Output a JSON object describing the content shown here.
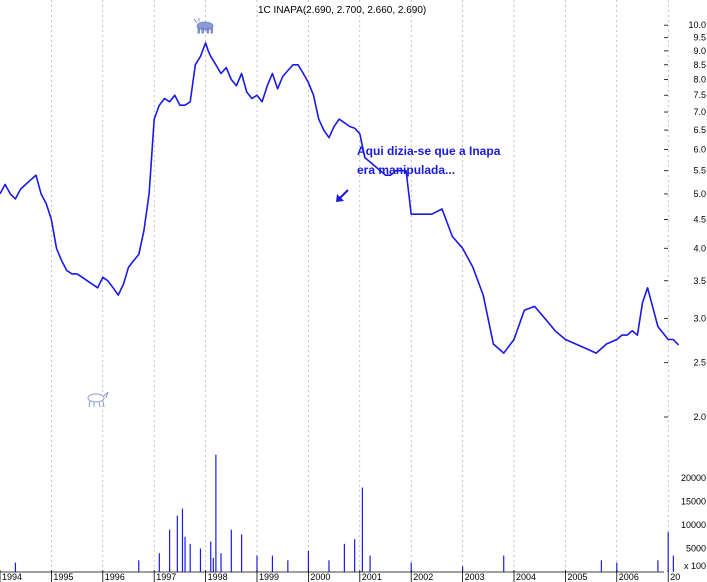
{
  "chart_data": {
    "type": "line",
    "title": "1C INAPA(2.690, 2.700, 2.660, 2.690)",
    "annotation_lines": [
      "Aqui dizia-se que a Inapa",
      "era manipulada..."
    ],
    "x_tick_labels": [
      "1994",
      "1995",
      "1996",
      "1997",
      "1998",
      "1999",
      "2000",
      "2001",
      "2002",
      "2003",
      "2004",
      "2005",
      "2006",
      "20"
    ],
    "y_tick_labels": [
      "10.0",
      "9.5",
      "9.0",
      "8.5",
      "8.0",
      "7.5",
      "7.0",
      "6.5",
      "6.0",
      "5.5",
      "5.0",
      "4.5",
      "4.0",
      "3.5",
      "3.0",
      "2.5",
      "2.0"
    ],
    "price_scale": "log",
    "y_range": [
      1.85,
      10.3
    ],
    "volume_tick_labels": [
      "20000",
      "15000",
      "10000",
      "5000"
    ],
    "volume_unit_label": "x 100",
    "volume_range": [
      0,
      26000
    ],
    "series": [
      {
        "x": [
          1994.0,
          1994.1,
          1994.2,
          1994.3,
          1994.4,
          1994.5,
          1994.6,
          1994.7,
          1994.8,
          1994.9,
          1995.0,
          1995.1,
          1995.2,
          1995.3,
          1995.4,
          1995.5,
          1995.6,
          1995.7,
          1995.8,
          1995.9,
          1996.0,
          1996.1,
          1996.2,
          1996.3,
          1996.4,
          1996.5,
          1996.6,
          1996.7,
          1996.8,
          1996.9,
          1997.0,
          1997.05,
          1997.1,
          1997.2,
          1997.3,
          1997.4,
          1997.5,
          1997.6,
          1997.7,
          1997.8,
          1997.9,
          1998.0,
          1998.05,
          1998.1,
          1998.2,
          1998.3,
          1998.4,
          1998.5,
          1998.6,
          1998.7,
          1998.8,
          1998.9,
          1999.0,
          1999.1,
          1999.2,
          1999.3,
          1999.4,
          1999.5,
          1999.6,
          1999.7,
          1999.8,
          1999.9,
          2000.0,
          2000.1,
          2000.2,
          2000.3,
          2000.4,
          2000.5,
          2000.6,
          2000.7,
          2000.8,
          2000.9,
          2001.0,
          2001.1,
          2001.2,
          2001.3,
          2001.4,
          2001.5,
          2001.6,
          2001.7,
          2001.8,
          2001.9,
          2002.0,
          2002.2,
          2002.4,
          2002.6,
          2002.8,
          2003.0,
          2003.2,
          2003.4,
          2003.6,
          2003.8,
          2004.0,
          2004.2,
          2004.4,
          2004.6,
          2004.8,
          2005.0,
          2005.2,
          2005.4,
          2005.6,
          2005.8,
          2006.0,
          2006.1,
          2006.2,
          2006.3,
          2006.4,
          2006.5,
          2006.6,
          2006.8,
          2007.0,
          2007.1,
          2007.2
        ],
        "y": [
          5.0,
          5.2,
          5.0,
          4.9,
          5.1,
          5.2,
          5.3,
          5.4,
          5.0,
          4.8,
          4.5,
          4.0,
          3.8,
          3.65,
          3.6,
          3.6,
          3.55,
          3.5,
          3.45,
          3.4,
          3.55,
          3.5,
          3.4,
          3.3,
          3.45,
          3.7,
          3.8,
          3.9,
          4.3,
          5.0,
          6.8,
          7.0,
          7.2,
          7.4,
          7.3,
          7.5,
          7.2,
          7.2,
          7.3,
          8.5,
          8.8,
          9.3,
          9.0,
          8.8,
          8.5,
          8.2,
          8.4,
          8.0,
          7.8,
          8.2,
          7.6,
          7.4,
          7.5,
          7.3,
          7.8,
          8.2,
          7.7,
          8.1,
          8.3,
          8.5,
          8.5,
          8.2,
          7.9,
          7.5,
          6.8,
          6.5,
          6.3,
          6.6,
          6.8,
          6.7,
          6.6,
          6.55,
          6.4,
          5.8,
          5.7,
          5.6,
          5.5,
          5.4,
          5.4,
          5.5,
          5.5,
          5.5,
          4.6,
          4.6,
          4.6,
          4.7,
          4.2,
          4.0,
          3.7,
          3.3,
          2.7,
          2.6,
          2.75,
          3.1,
          3.15,
          3.0,
          2.85,
          2.75,
          2.7,
          2.65,
          2.6,
          2.7,
          2.75,
          2.8,
          2.8,
          2.85,
          2.8,
          3.2,
          3.4,
          2.9,
          2.75,
          2.75,
          2.69
        ]
      }
    ],
    "volume_spikes": [
      {
        "x": 1994.3,
        "v": 2000
      },
      {
        "x": 1996.7,
        "v": 2500
      },
      {
        "x": 1997.1,
        "v": 4000
      },
      {
        "x": 1997.3,
        "v": 9000
      },
      {
        "x": 1997.45,
        "v": 12000
      },
      {
        "x": 1997.55,
        "v": 13500
      },
      {
        "x": 1997.6,
        "v": 7500
      },
      {
        "x": 1997.7,
        "v": 6000
      },
      {
        "x": 1997.9,
        "v": 5000
      },
      {
        "x": 1998.1,
        "v": 6500
      },
      {
        "x": 1998.15,
        "v": 3000
      },
      {
        "x": 1998.2,
        "v": 25000
      },
      {
        "x": 1998.3,
        "v": 4000
      },
      {
        "x": 1998.5,
        "v": 9000
      },
      {
        "x": 1998.7,
        "v": 8000
      },
      {
        "x": 1999.0,
        "v": 3500
      },
      {
        "x": 1999.3,
        "v": 3500
      },
      {
        "x": 1999.6,
        "v": 2500
      },
      {
        "x": 2000.0,
        "v": 4500
      },
      {
        "x": 2000.4,
        "v": 2500
      },
      {
        "x": 2000.7,
        "v": 6000
      },
      {
        "x": 2000.9,
        "v": 7000
      },
      {
        "x": 2001.05,
        "v": 18000
      },
      {
        "x": 2001.2,
        "v": 3500
      },
      {
        "x": 2002.0,
        "v": 2000
      },
      {
        "x": 2003.0,
        "v": 1200
      },
      {
        "x": 2003.8,
        "v": 3500
      },
      {
        "x": 2005.7,
        "v": 2500
      },
      {
        "x": 2006.0,
        "v": 2000
      },
      {
        "x": 2006.8,
        "v": 2500
      },
      {
        "x": 2007.0,
        "v": 8500
      },
      {
        "x": 2007.1,
        "v": 3500
      }
    ]
  }
}
